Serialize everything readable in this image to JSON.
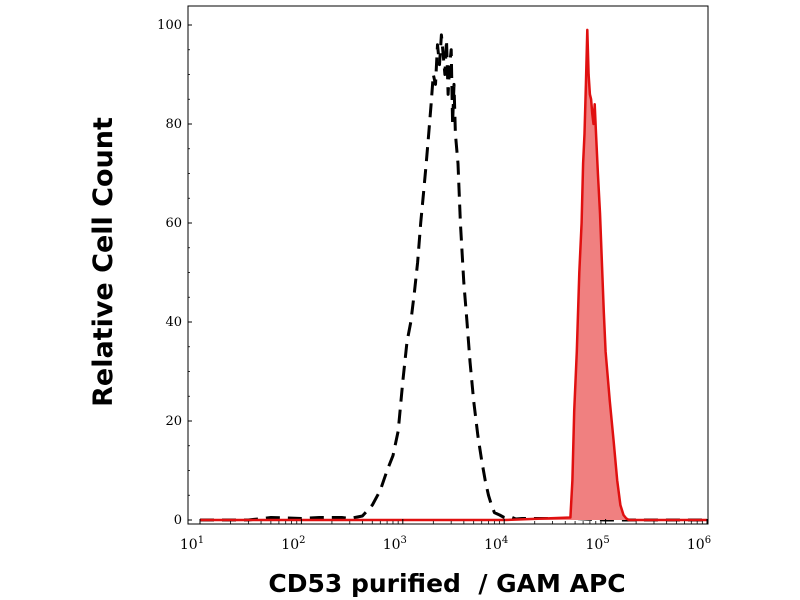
{
  "chart_data": {
    "type": "area",
    "title": "",
    "xlabel": "CD53 purified  / GAM APC",
    "ylabel": "Relative Cell Count",
    "x_scale": "log",
    "xlim": [
      10,
      1000000
    ],
    "ylim": [
      0,
      100
    ],
    "x_ticks": [
      {
        "base": "10",
        "exp": "1"
      },
      {
        "base": "10",
        "exp": "2"
      },
      {
        "base": "10",
        "exp": "3"
      },
      {
        "base": "10",
        "exp": "4"
      },
      {
        "base": "10",
        "exp": "5"
      },
      {
        "base": "10",
        "exp": "6"
      }
    ],
    "y_ticks": [
      "0",
      "20",
      "40",
      "60",
      "80",
      "100"
    ],
    "grid": false,
    "legend": "none",
    "series": [
      {
        "style": "dashed-line",
        "color": "#000000",
        "fill": "none",
        "x": [
          10,
          30,
          50,
          100,
          150,
          250,
          300,
          400,
          500,
          600,
          700,
          800,
          900,
          1000,
          1100,
          1200,
          1300,
          1400,
          1500,
          1600,
          1700,
          1800,
          1900,
          2000,
          2100,
          2200,
          2300,
          2400,
          2500,
          2600,
          2700,
          2800,
          2900,
          3000,
          3100,
          3200,
          3300,
          3500,
          3700,
          4000,
          4300,
          4600,
          5000,
          5500,
          6000,
          6500,
          7000,
          7500,
          8000,
          9000,
          10000,
          11000,
          12000,
          13000,
          15000,
          20000,
          30000,
          40000,
          50000,
          100000,
          1000000
        ],
        "y": [
          0,
          0,
          0.5,
          0.3,
          0.5,
          0.5,
          0.3,
          0.8,
          3,
          6,
          10,
          13,
          18,
          28,
          36,
          40,
          46,
          52,
          60,
          66,
          72,
          78,
          84,
          90,
          88,
          96,
          92,
          98,
          94,
          90,
          97,
          86,
          92,
          95,
          80,
          88,
          78,
          72,
          60,
          48,
          40,
          32,
          24,
          17,
          12,
          8,
          5,
          3,
          1.5,
          1,
          0.5,
          0.3,
          0.5,
          0.2,
          0.3,
          0.3,
          0.3,
          0.3,
          0.3,
          0,
          0
        ]
      },
      {
        "style": "filled",
        "color": "#e01010",
        "fill": "#f08080",
        "x": [
          10,
          100,
          1000,
          10000,
          45000,
          47000,
          49000,
          52000,
          55000,
          58000,
          60000,
          62000,
          64000,
          66000,
          68000,
          70000,
          72000,
          74000,
          76000,
          78000,
          80000,
          84000,
          88000,
          92000,
          96000,
          100000,
          110000,
          120000,
          130000,
          140000,
          150000,
          160000,
          170000,
          1000000
        ],
        "y": [
          0,
          0,
          0,
          0,
          0.5,
          8,
          22,
          34,
          50,
          60,
          72,
          78,
          88,
          99,
          90,
          86,
          85,
          82,
          80,
          84,
          79,
          70,
          62,
          52,
          42,
          34,
          24,
          16,
          8,
          3,
          1,
          0.3,
          0,
          0
        ]
      }
    ]
  }
}
